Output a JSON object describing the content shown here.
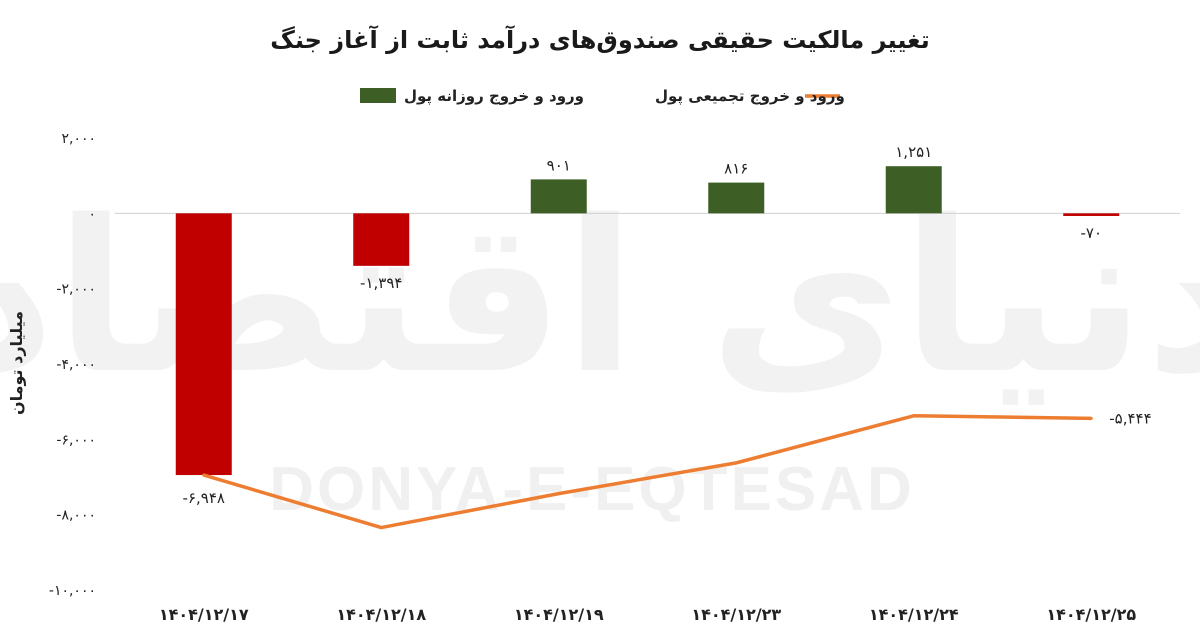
{
  "chart_data": {
    "type": "bar",
    "title": "تغییر مالکیت حقیقی صندوق‌های درآمد ثابت از آغاز جنگ",
    "ylabel": "میلیارد تومان",
    "xlabel": "",
    "ylim": [
      -10000,
      2000
    ],
    "yticks": [
      2000,
      0,
      -2000,
      -4000,
      -6000,
      -8000,
      -10000
    ],
    "ytick_labels": [
      "۲,۰۰۰",
      "۰",
      "-۲,۰۰۰",
      "-۴,۰۰۰",
      "-۶,۰۰۰",
      "-۸,۰۰۰",
      "-۱۰,۰۰۰"
    ],
    "categories": [
      "۱۴۰۴/۱۲/۱۷",
      "۱۴۰۴/۱۲/۱۸",
      "۱۴۰۴/۱۲/۱۹",
      "۱۴۰۴/۱۲/۲۳",
      "۱۴۰۴/۱۲/۲۴",
      "۱۴۰۴/۱۲/۲۵"
    ],
    "grid": false,
    "legend_position": "top",
    "series": [
      {
        "name": "ورود و خروج روزانه پول",
        "type": "bar",
        "values": [
          -6948,
          -1394,
          901,
          816,
          1251,
          -70
        ],
        "labels": [
          "",
          "-۱,۳۹۴",
          "۹۰۱",
          "۸۱۶",
          "۱,۲۵۱",
          "-۷۰"
        ],
        "color_positive": "#3d5e24",
        "color_negative": "#c00000"
      },
      {
        "name": "ورود و خروج تجمیعی پول",
        "type": "line",
        "values": [
          -6948,
          -8342,
          -7441,
          -6625,
          -5374,
          -5444
        ],
        "labels": [
          "-۶,۹۴۸",
          "",
          "",
          "",
          "",
          "-۵,۴۴۴"
        ],
        "color": "#ed7d31"
      }
    ]
  },
  "watermark": {
    "persian": "دنیای اقتصاد",
    "latin": "DONYA-E-EQTESAD"
  }
}
